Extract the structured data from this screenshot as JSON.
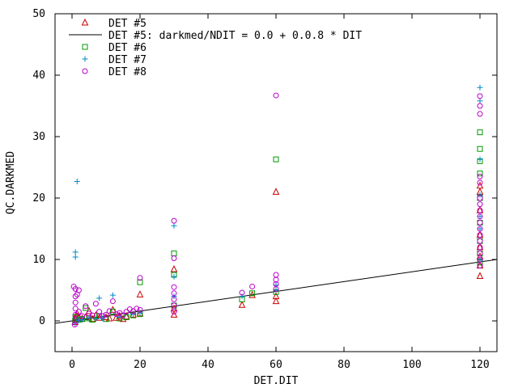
{
  "chart_data": {
    "type": "scatter",
    "xlabel": "DET.DIT",
    "ylabel": "QC.DARKMED",
    "xlim": [
      -5,
      125
    ],
    "ylim": [
      -5,
      50
    ],
    "xticks": [
      "0",
      "20",
      "40",
      "60",
      "80",
      "100",
      "120"
    ],
    "yticks": [
      "0",
      "10",
      "20",
      "30",
      "40",
      "50"
    ],
    "legend_position": "top-left",
    "fit_line": {
      "label": "DET #5: darkmed/NDIT = 0.0 + 0.0.8 * DIT",
      "color": "#000000",
      "intercept": 0.0,
      "slope": 0.08
    },
    "series": [
      {
        "name": "DET #5",
        "marker": "triangle",
        "color": "#cc0000",
        "points": [
          [
            0.9,
            -0.2
          ],
          [
            1,
            0.3
          ],
          [
            1.2,
            0.8
          ],
          [
            1.5,
            1.2
          ],
          [
            2,
            0.5
          ],
          [
            3,
            0.4
          ],
          [
            4,
            0.6
          ],
          [
            5,
            1.6
          ],
          [
            6,
            0.3
          ],
          [
            7,
            0.9
          ],
          [
            8,
            0.5
          ],
          [
            10,
            0.6
          ],
          [
            11,
            0.4
          ],
          [
            12,
            1.8
          ],
          [
            13,
            0.5
          ],
          [
            14,
            0.8
          ],
          [
            15,
            0.3
          ],
          [
            16,
            0.7
          ],
          [
            18,
            1.0
          ],
          [
            20,
            1.2
          ],
          [
            20,
            4.3
          ],
          [
            30,
            1.0
          ],
          [
            30,
            2.0
          ],
          [
            30,
            8.4
          ],
          [
            50,
            2.6
          ],
          [
            53,
            4.2
          ],
          [
            60,
            3.2
          ],
          [
            60,
            4.0
          ],
          [
            60,
            21.0
          ],
          [
            120,
            7.3
          ],
          [
            120,
            9.0
          ],
          [
            120,
            10.5
          ],
          [
            120,
            12.0
          ],
          [
            120,
            14.0
          ],
          [
            120,
            18.0
          ],
          [
            120,
            21.0
          ],
          [
            120,
            22.0
          ]
        ]
      },
      {
        "name": "DET #6",
        "marker": "square",
        "color": "#009900",
        "points": [
          [
            0.9,
            0.0
          ],
          [
            1,
            0.6
          ],
          [
            2,
            0.2
          ],
          [
            3,
            0.3
          ],
          [
            4,
            2.1
          ],
          [
            5,
            0.4
          ],
          [
            6,
            0.2
          ],
          [
            8,
            0.8
          ],
          [
            10,
            0.3
          ],
          [
            12,
            1.5
          ],
          [
            14,
            0.4
          ],
          [
            16,
            0.6
          ],
          [
            18,
            0.9
          ],
          [
            20,
            1.1
          ],
          [
            20,
            6.3
          ],
          [
            30,
            2.5
          ],
          [
            30,
            7.5
          ],
          [
            30,
            11.0
          ],
          [
            50,
            3.5
          ],
          [
            53,
            4.5
          ],
          [
            60,
            4.7
          ],
          [
            60,
            26.3
          ],
          [
            120,
            9.5
          ],
          [
            120,
            11.0
          ],
          [
            120,
            13.0
          ],
          [
            120,
            16.0
          ],
          [
            120,
            20.0
          ],
          [
            120,
            24.0
          ],
          [
            120,
            26.0
          ],
          [
            120,
            28.0
          ],
          [
            120,
            30.7
          ]
        ]
      },
      {
        "name": "DET #7",
        "marker": "plus",
        "color": "#0088cc",
        "points": [
          [
            0.9,
            -0.4
          ],
          [
            1,
            10.4
          ],
          [
            1,
            11.2
          ],
          [
            1.5,
            22.7
          ],
          [
            2,
            0.1
          ],
          [
            3,
            0.2
          ],
          [
            5,
            0.5
          ],
          [
            7,
            0.3
          ],
          [
            8,
            3.7
          ],
          [
            9,
            0.4
          ],
          [
            12,
            4.2
          ],
          [
            14,
            0.6
          ],
          [
            18,
            1.1
          ],
          [
            20,
            1.3
          ],
          [
            30,
            4.0
          ],
          [
            30,
            7.2
          ],
          [
            30,
            15.5
          ],
          [
            50,
            4.0
          ],
          [
            60,
            5.0
          ],
          [
            60,
            5.8
          ],
          [
            120,
            10.0
          ],
          [
            120,
            15.0
          ],
          [
            120,
            17.0
          ],
          [
            120,
            20.5
          ],
          [
            120,
            26.3
          ],
          [
            120,
            35.8
          ],
          [
            120,
            38.0
          ]
        ]
      },
      {
        "name": "DET #8",
        "marker": "circle",
        "color": "#bb00cc",
        "points": [
          [
            0.5,
            5.6
          ],
          [
            0.8,
            -0.6
          ],
          [
            1,
            0.0
          ],
          [
            1,
            1.0
          ],
          [
            1,
            2.0
          ],
          [
            1,
            3.0
          ],
          [
            1,
            4.0
          ],
          [
            1,
            5.2
          ],
          [
            1.5,
            4.3
          ],
          [
            2,
            5.0
          ],
          [
            2,
            1.5
          ],
          [
            3,
            0.8
          ],
          [
            4,
            2.4
          ],
          [
            5,
            1.2
          ],
          [
            6,
            0.9
          ],
          [
            7,
            2.8
          ],
          [
            8,
            1.5
          ],
          [
            9,
            0.8
          ],
          [
            10,
            1.0
          ],
          [
            11,
            1.6
          ],
          [
            12,
            3.2
          ],
          [
            13,
            1.1
          ],
          [
            14,
            1.3
          ],
          [
            15,
            0.9
          ],
          [
            16,
            1.5
          ],
          [
            17,
            1.9
          ],
          [
            18,
            1.6
          ],
          [
            19,
            2.0
          ],
          [
            20,
            1.8
          ],
          [
            20,
            7.0
          ],
          [
            30,
            1.5
          ],
          [
            30,
            2.5
          ],
          [
            30,
            3.5
          ],
          [
            30,
            4.5
          ],
          [
            30,
            5.5
          ],
          [
            30,
            10.2
          ],
          [
            30,
            16.3
          ],
          [
            50,
            4.6
          ],
          [
            53,
            5.6
          ],
          [
            60,
            5.2
          ],
          [
            60,
            6.0
          ],
          [
            60,
            6.7
          ],
          [
            60,
            7.5
          ],
          [
            60,
            36.7
          ],
          [
            120,
            9.0
          ],
          [
            120,
            10.0
          ],
          [
            120,
            11.0
          ],
          [
            120,
            12.0
          ],
          [
            120,
            13.0
          ],
          [
            120,
            14.0
          ],
          [
            120,
            15.0
          ],
          [
            120,
            16.0
          ],
          [
            120,
            17.0
          ],
          [
            120,
            18.0
          ],
          [
            120,
            19.0
          ],
          [
            120,
            20.0
          ],
          [
            120,
            22.5
          ],
          [
            120,
            23.5
          ],
          [
            120,
            33.7
          ],
          [
            120,
            35.0
          ],
          [
            120,
            36.6
          ]
        ]
      }
    ]
  }
}
